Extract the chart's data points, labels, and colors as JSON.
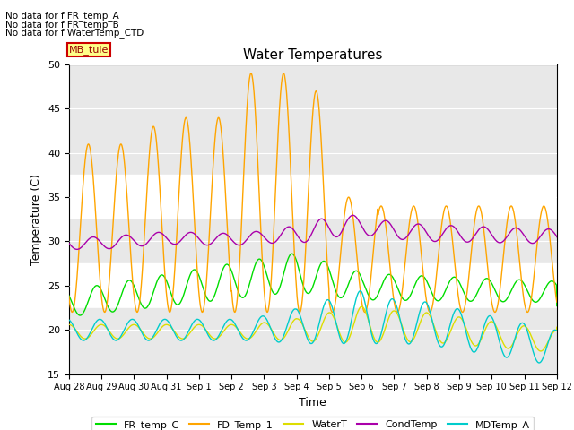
{
  "title": "Water Temperatures",
  "xlabel": "Time",
  "ylabel": "Temperature (C)",
  "ylim": [
    15,
    50
  ],
  "no_data_labels": [
    "No data for f FR_temp_A",
    "No data for f FR_temp_B",
    "No data for f WaterTemp_CTD"
  ],
  "mb_tule_label": "MB_tule",
  "background_color": "#ffffff",
  "shade_color": "#e8e8e8",
  "x_tick_labels": [
    "Aug 28",
    "Aug 29",
    "Aug 30",
    "Aug 31",
    "Sep 1",
    "Sep 2",
    "Sep 3",
    "Sep 4",
    "Sep 5",
    "Sep 6",
    "Sep 7",
    "Sep 8",
    "Sep 9",
    "Sep 10",
    "Sep 11",
    "Sep 12"
  ],
  "series_colors": {
    "FR_temp_C": "#00dd00",
    "FD_Temp_1": "#ffa500",
    "WaterT": "#dddd00",
    "CondTemp": "#aa00aa",
    "MDTemp_A": "#00cccc"
  },
  "legend_colors": {
    "FR_temp_C": "#00dd00",
    "FD_Temp_1": "#ffa500",
    "WaterT": "#dddd00",
    "CondTemp": "#aa00aa",
    "MDTemp_A": "#00cccc"
  }
}
